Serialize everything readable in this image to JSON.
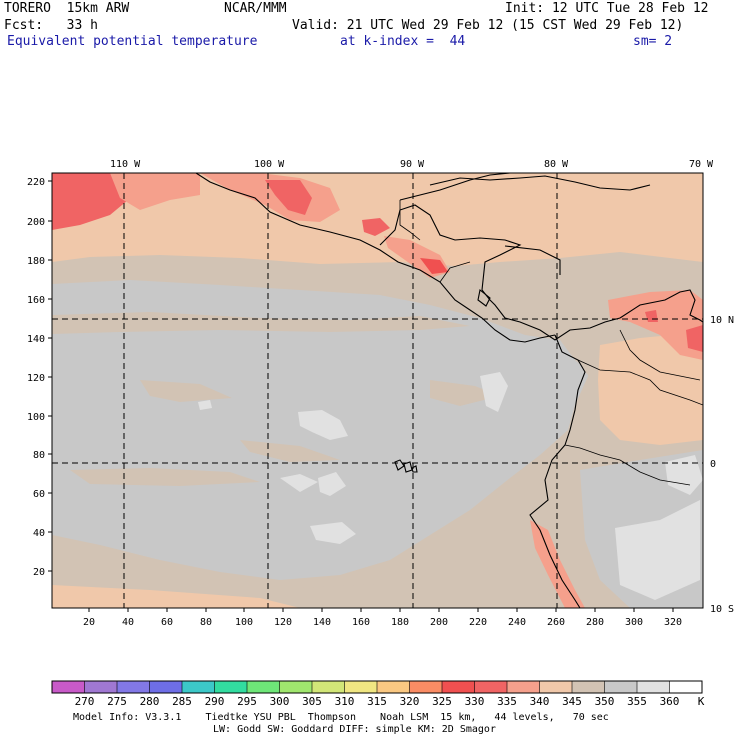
{
  "header": {
    "model": "TORERO  15km ARW",
    "center": "NCAR/MMM",
    "init": "Init: 12 UTC Tue 28 Feb 12",
    "fcst": "Fcst:   33 h",
    "valid": "Valid: 21 UTC Wed 29 Feb 12 (15 CST Wed 29 Feb 12)",
    "field": "Equivalent potential temperature",
    "level": "at k-index =  44",
    "smooth": "sm= 2"
  },
  "map": {
    "lon_labels": [
      "110 W",
      "100 W",
      "90 W",
      "80 W",
      "70 W"
    ],
    "lat_labels": [
      "10 N",
      "0",
      "10 S"
    ],
    "y_ticks": [
      "220",
      "200",
      "180",
      "160",
      "140",
      "120",
      "100",
      "80",
      "60",
      "40",
      "20"
    ],
    "x_ticks": [
      "20",
      "40",
      "60",
      "80",
      "100",
      "120",
      "140",
      "160",
      "180",
      "200",
      "220",
      "240",
      "260",
      "280",
      "300",
      "320"
    ]
  },
  "colorbar": {
    "labels": [
      "270",
      "275",
      "280",
      "285",
      "290",
      "295",
      "300",
      "305",
      "310",
      "315",
      "320",
      "325",
      "330",
      "335",
      "340",
      "345",
      "350",
      "355",
      "360"
    ],
    "unit": "K",
    "colors": [
      "#c85ac8",
      "#a078d2",
      "#8278e6",
      "#6e6ee6",
      "#3cc8c8",
      "#32dca0",
      "#6ee678",
      "#a0e66e",
      "#d2e678",
      "#f0e682",
      "#fac882",
      "#fa8c64",
      "#f05050",
      "#f06464",
      "#f5a08c",
      "#f0c8aa",
      "#d2c3b4",
      "#c8c8c8",
      "#e1e1e1",
      "#ffffff"
    ]
  },
  "footer": {
    "line1": "Model Info: V3.3.1    Tiedtke YSU PBL  Thompson    Noah LSM  15 km,   44 levels,   70 sec",
    "line2": "LW: Godd SW: Goddard DIFF: simple KM: 2D Smagor"
  }
}
